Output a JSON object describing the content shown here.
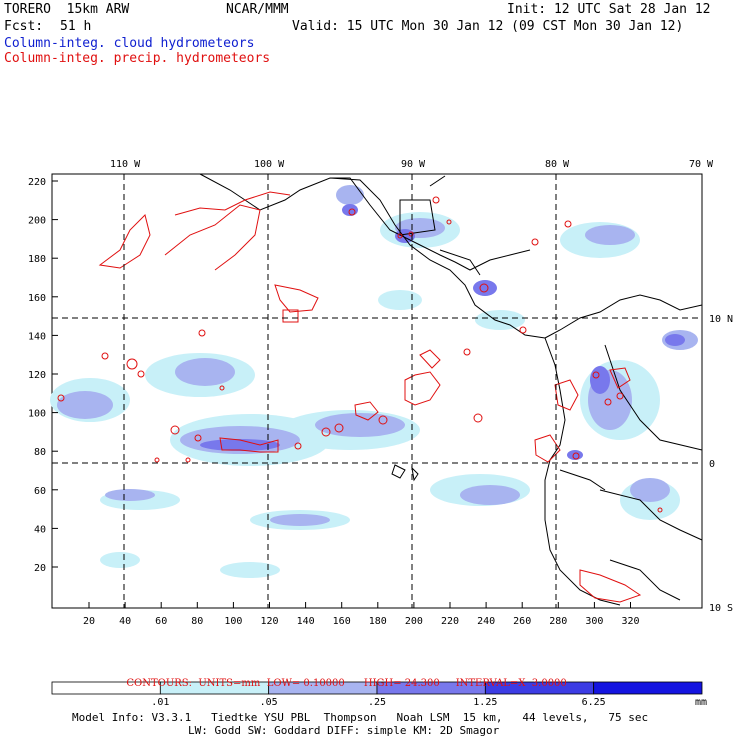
{
  "header": {
    "model": "TORERO  15km ARW",
    "org": "NCAR/MMM",
    "init": "Init: 12 UTC Sat 28 Jan 12",
    "fcst_label": "Fcst:",
    "fcst_value": "51 h",
    "valid": "Valid: 15 UTC Mon 30 Jan 12 (09 CST Mon 30 Jan 12)",
    "legend_cloud": "Column-integ. cloud hydrometeors",
    "legend_precip": "Column-integ. precip. hydrometeors"
  },
  "colors": {
    "cloud": "#1020d0",
    "precip": "#e01010",
    "scale": [
      "#ffffff",
      "#c8f0f8",
      "#a8b4f0",
      "#7878ec",
      "#3c3ce4",
      "#1414e0"
    ]
  },
  "axes": {
    "top_lon": [
      "110 W",
      "100 W",
      "90 W",
      "80 W",
      "70 W"
    ],
    "right_lat": [
      "10 N",
      "0",
      "10 S"
    ],
    "left_y": [
      "220",
      "200",
      "180",
      "160",
      "140",
      "120",
      "100",
      "80",
      "60",
      "40",
      "20"
    ],
    "bottom_x": [
      "20",
      "40",
      "60",
      "80",
      "100",
      "120",
      "140",
      "160",
      "180",
      "200",
      "220",
      "240",
      "260",
      "280",
      "300",
      "320"
    ]
  },
  "contour_info": {
    "contours_label": "CONTOURS:",
    "units": "UNITS=mm",
    "low": "LOW= 0.10000",
    "high": "HIGH= 24.300",
    "interval": "INTERVAL=X  3.0000"
  },
  "colorbar": {
    "labels": [
      ".01",
      ".05",
      ".25",
      "1.25",
      "6.25"
    ],
    "units": "mm"
  },
  "footer": {
    "line1": "Model Info: V3.3.1   Tiedtke YSU PBL  Thompson   Noah LSM  15 km,   44 levels,   75 sec",
    "line2": "LW: Godd SW: Goddard DIFF: simple KM: 2D Smagor"
  }
}
